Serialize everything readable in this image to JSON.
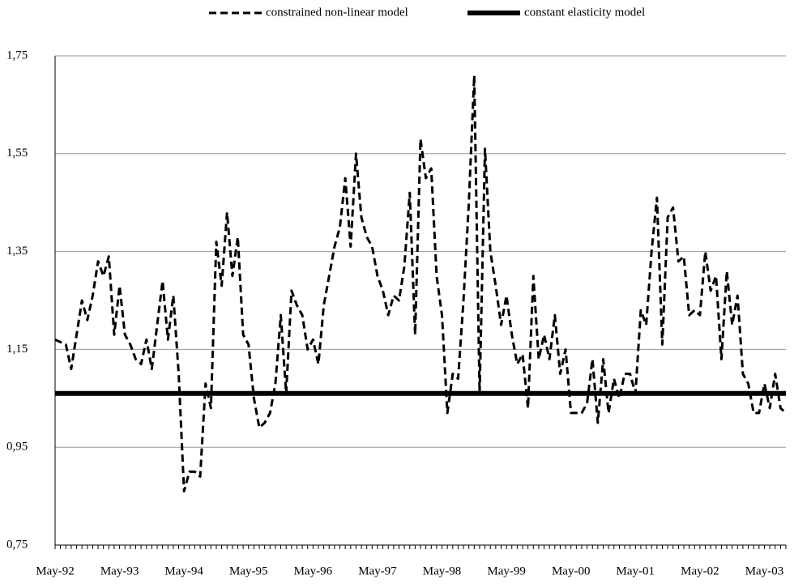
{
  "chart_data": {
    "type": "line",
    "legend": "top",
    "grid": true,
    "categories": [
      "May-92",
      null,
      null,
      null,
      null,
      null,
      null,
      null,
      null,
      null,
      null,
      null,
      "May-93",
      null,
      null,
      null,
      null,
      null,
      null,
      null,
      null,
      null,
      null,
      null,
      "May-94",
      null,
      null,
      null,
      null,
      null,
      null,
      null,
      null,
      null,
      null,
      null,
      "May-95",
      null,
      null,
      null,
      null,
      null,
      null,
      null,
      null,
      null,
      null,
      null,
      "May-96",
      null,
      null,
      null,
      null,
      null,
      null,
      null,
      null,
      null,
      null,
      null,
      "May-97",
      null,
      null,
      null,
      null,
      null,
      null,
      null,
      null,
      null,
      null,
      null,
      "May-98",
      null,
      null,
      null,
      null,
      null,
      null,
      null,
      null,
      null,
      null,
      null,
      "May-99",
      null,
      null,
      null,
      null,
      null,
      null,
      null,
      null,
      null,
      null,
      null,
      "May-00",
      null,
      null,
      null,
      null,
      null,
      null,
      null,
      null,
      null,
      null,
      null,
      "May-01",
      null,
      null,
      null,
      null,
      null,
      null,
      null,
      null,
      null,
      null,
      null,
      "May-02",
      null,
      null,
      null,
      null,
      null,
      null,
      null,
      null,
      null,
      null,
      null,
      "May-03",
      null,
      null,
      null,
      null
    ],
    "series": [
      {
        "name": "constrained non-linear model",
        "color": "#000000",
        "dash": true,
        "values": [
          1.17,
          1.165,
          1.16,
          1.11,
          1.18,
          1.25,
          1.21,
          1.26,
          1.33,
          1.3,
          1.34,
          1.18,
          1.28,
          1.18,
          1.16,
          1.13,
          1.12,
          1.17,
          1.11,
          1.2,
          1.29,
          1.17,
          1.26,
          1.1,
          0.86,
          0.9,
          0.9,
          0.89,
          1.08,
          1.03,
          1.37,
          1.28,
          1.43,
          1.3,
          1.38,
          1.18,
          1.16,
          1.05,
          0.99,
          1.0,
          1.02,
          1.08,
          1.22,
          1.06,
          1.27,
          1.24,
          1.22,
          1.15,
          1.17,
          1.12,
          1.24,
          1.3,
          1.36,
          1.4,
          1.5,
          1.36,
          1.55,
          1.42,
          1.38,
          1.36,
          1.3,
          1.27,
          1.22,
          1.26,
          1.25,
          1.32,
          1.47,
          1.18,
          1.58,
          1.5,
          1.52,
          1.3,
          1.22,
          1.02,
          1.1,
          1.09,
          1.25,
          1.45,
          1.71,
          1.06,
          1.56,
          1.35,
          1.28,
          1.2,
          1.26,
          1.18,
          1.12,
          1.14,
          1.03,
          1.3,
          1.13,
          1.18,
          1.13,
          1.22,
          1.1,
          1.15,
          1.02,
          1.02,
          1.02,
          1.04,
          1.13,
          1.0,
          1.13,
          1.02,
          1.09,
          1.05,
          1.1,
          1.1,
          1.06,
          1.23,
          1.2,
          1.35,
          1.46,
          1.16,
          1.42,
          1.44,
          1.33,
          1.34,
          1.22,
          1.23,
          1.22,
          1.35,
          1.27,
          1.3,
          1.13,
          1.31,
          1.2,
          1.26,
          1.1,
          1.08,
          1.02,
          1.02,
          1.08,
          1.03,
          1.1,
          1.03,
          1.02
        ]
      },
      {
        "name": "constant elasticity model",
        "color": "#000000",
        "dash": false,
        "values": [
          1.06,
          1.06,
          1.06,
          1.06,
          1.06,
          1.06,
          1.06,
          1.06,
          1.06,
          1.06,
          1.06,
          1.06,
          1.06,
          1.06,
          1.06,
          1.06,
          1.06,
          1.06,
          1.06,
          1.06,
          1.06,
          1.06,
          1.06,
          1.06,
          1.06,
          1.06,
          1.06,
          1.06,
          1.06,
          1.06,
          1.06,
          1.06,
          1.06,
          1.06,
          1.06,
          1.06,
          1.06,
          1.06,
          1.06,
          1.06,
          1.06,
          1.06,
          1.06,
          1.06,
          1.06,
          1.06,
          1.06,
          1.06,
          1.06,
          1.06,
          1.06,
          1.06,
          1.06,
          1.06,
          1.06,
          1.06,
          1.06,
          1.06,
          1.06,
          1.06,
          1.06,
          1.06,
          1.06,
          1.06,
          1.06,
          1.06,
          1.06,
          1.06,
          1.06,
          1.06,
          1.06,
          1.06,
          1.06,
          1.06,
          1.06,
          1.06,
          1.06,
          1.06,
          1.06,
          1.06,
          1.06,
          1.06,
          1.06,
          1.06,
          1.06,
          1.06,
          1.06,
          1.06,
          1.06,
          1.06,
          1.06,
          1.06,
          1.06,
          1.06,
          1.06,
          1.06,
          1.06,
          1.06,
          1.06,
          1.06,
          1.06,
          1.06,
          1.06,
          1.06,
          1.06,
          1.06,
          1.06,
          1.06,
          1.06,
          1.06,
          1.06,
          1.06,
          1.06,
          1.06,
          1.06,
          1.06,
          1.06,
          1.06,
          1.06,
          1.06,
          1.06,
          1.06,
          1.06,
          1.06,
          1.06,
          1.06,
          1.06,
          1.06,
          1.06,
          1.06,
          1.06,
          1.06,
          1.06,
          1.06,
          1.06,
          1.06,
          1.06
        ]
      }
    ],
    "ylim": [
      0.75,
      1.75
    ],
    "yticks": [
      {
        "value": 0.75,
        "label": "0,75"
      },
      {
        "value": 0.95,
        "label": "0,95"
      },
      {
        "value": 1.15,
        "label": "1,15"
      },
      {
        "value": 1.35,
        "label": "1,35"
      },
      {
        "value": 1.55,
        "label": "1,55"
      },
      {
        "value": 1.75,
        "label": "1,75"
      }
    ]
  }
}
